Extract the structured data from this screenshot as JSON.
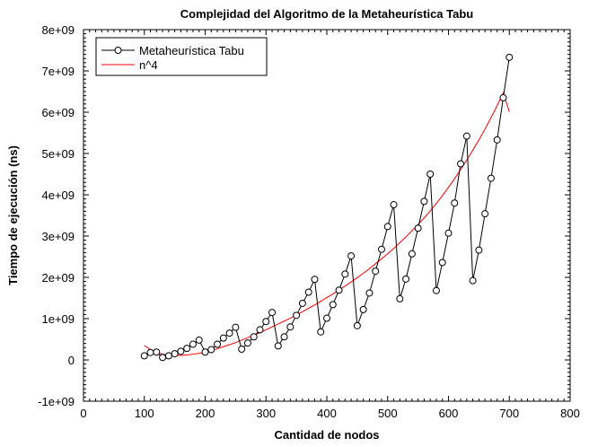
{
  "chart_data": {
    "type": "line",
    "title": "Complejidad del Algoritmo de la Metaheurística Tabu",
    "xlabel": "Cantidad de nodos",
    "ylabel": "Tiempo de ejecución (ns)",
    "xlim": [
      0,
      800
    ],
    "ylim": [
      -1000000000,
      8000000000
    ],
    "x_ticks": [
      0,
      100,
      200,
      300,
      400,
      500,
      600,
      700,
      800
    ],
    "x_tick_labels": [
      "0",
      "100",
      "200",
      "300",
      "400",
      "500",
      "600",
      "700",
      "800"
    ],
    "y_ticks": [
      -1000000000,
      0,
      1000000000,
      2000000000,
      3000000000,
      4000000000,
      5000000000,
      6000000000,
      7000000000,
      8000000000
    ],
    "y_tick_labels": [
      "-1e+09",
      "0",
      "1e+09",
      "2e+09",
      "3e+09",
      "4e+09",
      "5e+09",
      "6e+09",
      "7e+09",
      "8e+09"
    ],
    "grid": false,
    "legend_position": "top-left",
    "series": [
      {
        "name": "Metaheurística Tabu",
        "color": "#000000",
        "marker": "open-circle",
        "x": [
          100,
          110,
          120,
          130,
          140,
          150,
          160,
          170,
          180,
          190,
          200,
          210,
          220,
          230,
          240,
          250,
          260,
          270,
          280,
          290,
          300,
          310,
          320,
          330,
          340,
          350,
          360,
          370,
          380,
          390,
          400,
          410,
          420,
          430,
          440,
          450,
          460,
          470,
          480,
          490,
          500,
          510,
          520,
          530,
          540,
          550,
          560,
          570,
          580,
          590,
          600,
          610,
          620,
          630,
          640,
          650,
          660,
          670,
          680,
          690,
          700
        ],
        "y": [
          100000000,
          180000000,
          190000000,
          60000000,
          100000000,
          150000000,
          210000000,
          280000000,
          380000000,
          480000000,
          190000000,
          250000000,
          380000000,
          530000000,
          650000000,
          790000000,
          260000000,
          410000000,
          560000000,
          730000000,
          930000000,
          1150000000,
          340000000,
          560000000,
          800000000,
          1080000000,
          1370000000,
          1640000000,
          1950000000,
          680000000,
          1010000000,
          1340000000,
          1690000000,
          2080000000,
          2520000000,
          830000000,
          1220000000,
          1620000000,
          2150000000,
          2680000000,
          3230000000,
          3760000000,
          1480000000,
          1960000000,
          2570000000,
          3190000000,
          3840000000,
          4500000000,
          1680000000,
          2360000000,
          3070000000,
          3800000000,
          4750000000,
          5420000000,
          1920000000,
          2660000000,
          3540000000,
          4400000000,
          5330000000,
          6350000000,
          7330000000
        ]
      },
      {
        "name": "n^4",
        "color": "#ff0000",
        "marker": "none",
        "x": [
          100,
          110,
          120,
          130,
          140,
          150,
          160,
          170,
          180,
          190,
          200,
          210,
          220,
          230,
          240,
          250,
          260,
          270,
          280,
          290,
          300,
          310,
          320,
          330,
          340,
          350,
          360,
          370,
          380,
          390,
          400,
          410,
          420,
          430,
          440,
          450,
          460,
          470,
          480,
          490,
          500,
          510,
          520,
          530,
          540,
          550,
          560,
          570,
          580,
          590,
          600,
          610,
          620,
          630,
          640,
          650,
          660,
          670,
          680,
          690,
          700
        ],
        "y": [
          350000000,
          250000000,
          180000000,
          140000000,
          120000000,
          110000000,
          110000000,
          120000000,
          140000000,
          160000000,
          190000000,
          230000000,
          270000000,
          320000000,
          370000000,
          420000000,
          480000000,
          540000000,
          600000000,
          660000000,
          730000000,
          800000000,
          870000000,
          940000000,
          1010000000,
          1090000000,
          1170000000,
          1250000000,
          1330000000,
          1420000000,
          1510000000,
          1600000000,
          1690000000,
          1790000000,
          1890000000,
          1990000000,
          2100000000,
          2210000000,
          2330000000,
          2450000000,
          2570000000,
          2700000000,
          2840000000,
          2980000000,
          3130000000,
          3280000000,
          3440000000,
          3610000000,
          3790000000,
          3980000000,
          4180000000,
          4390000000,
          4610000000,
          4840000000,
          5080000000,
          5330000000,
          5590000000,
          5870000000,
          6160000000,
          6470000000,
          6010000000
        ]
      }
    ]
  }
}
